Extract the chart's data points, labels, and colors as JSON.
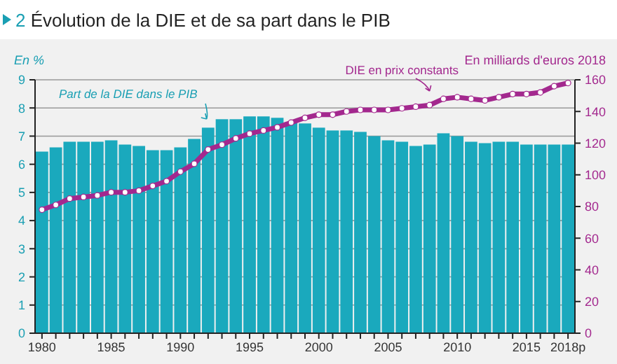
{
  "chart_data": {
    "type": "bar",
    "title": "2 Évolution de la DIE et de sa part dans le PIB",
    "ylabel": "En %",
    "y2label": "En milliards d'euros 2018",
    "categories": [
      "1980",
      null,
      null,
      null,
      null,
      "1985",
      null,
      null,
      null,
      null,
      "1990",
      null,
      null,
      null,
      null,
      "1995",
      null,
      null,
      null,
      null,
      "2000",
      null,
      null,
      null,
      null,
      "2005",
      null,
      null,
      null,
      null,
      "2010",
      null,
      null,
      null,
      null,
      "2015",
      null,
      null,
      "2018p"
    ],
    "series": [
      {
        "color": "#1aa9bd",
        "values": [
          6.45,
          6.6,
          6.8,
          6.8,
          6.8,
          6.85,
          6.7,
          6.65,
          6.5,
          6.5,
          6.6,
          6.9,
          7.3,
          7.6,
          7.6,
          7.7,
          7.7,
          7.65,
          7.5,
          7.45,
          7.3,
          7.2,
          7.2,
          7.15,
          7.0,
          6.85,
          6.8,
          6.65,
          6.7,
          7.1,
          7.0,
          6.8,
          6.75,
          6.8,
          6.8,
          6.7,
          6.7,
          6.7,
          6.7
        ]
      },
      {
        "type": "line",
        "axis": "y2",
        "color": "#a3288e",
        "values": [
          78,
          81,
          85,
          86,
          87,
          89,
          89,
          90,
          93,
          96,
          102,
          107,
          116,
          119,
          123,
          126,
          128,
          130,
          133,
          136,
          138,
          138,
          140,
          141,
          141,
          141,
          142,
          143,
          144,
          148,
          149,
          148,
          147,
          149,
          151,
          151,
          152,
          156,
          158
        ]
      }
    ],
    "ylim": [
      0,
      9
    ],
    "yticks": [
      0,
      1,
      2,
      3,
      4,
      5,
      6,
      7,
      8,
      9
    ],
    "y2lim": [
      0,
      160
    ],
    "y2ticks": [
      0,
      20,
      40,
      60,
      80,
      100,
      120,
      140,
      160
    ],
    "grid": "y",
    "marker": "circle",
    "line_style": "solid",
    "annotations": [
      "Part de la DIE dans le PIB",
      "DIE en prix constants"
    ]
  }
}
